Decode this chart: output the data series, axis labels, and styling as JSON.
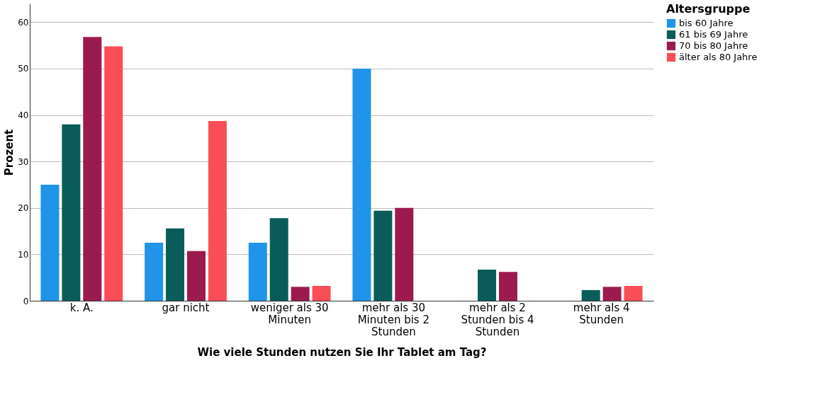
{
  "chart_data": {
    "type": "bar",
    "xlabel": "Wie viele Stunden nutzen Sie Ihr Tablet am Tag?",
    "ylabel": "Prozent",
    "legend_title": "Altersgruppe",
    "legend": "right",
    "categories": [
      "k. A.",
      "gar nicht",
      "weniger als 30 Minuten",
      "mehr als 30 Minuten bis 2 Stunden",
      "mehr als 2 Stunden bis 4 Stunden",
      "mehr als 4 Stunden"
    ],
    "ylim": [
      0,
      64
    ],
    "yticks": [
      0,
      10,
      20,
      30,
      40,
      50,
      60
    ],
    "grid": "y",
    "series": [
      {
        "name": "bis 60 Jahre",
        "color": "#1f94e8",
        "values": [
          25,
          12.5,
          12.5,
          50,
          null,
          null
        ]
      },
      {
        "name": "61 bis 69 Jahre",
        "color": "#0a5c5a",
        "values": [
          38,
          15.6,
          17.8,
          19.4,
          6.7,
          2.3
        ]
      },
      {
        "name": "70 bis 80 Jahre",
        "color": "#9b1b50",
        "values": [
          56.8,
          10.7,
          3.0,
          20,
          6.2,
          3.0
        ]
      },
      {
        "name": "älter als 80 Jahre",
        "color": "#f94d57",
        "values": [
          54.8,
          38.7,
          3.2,
          null,
          null,
          3.2
        ]
      }
    ]
  }
}
